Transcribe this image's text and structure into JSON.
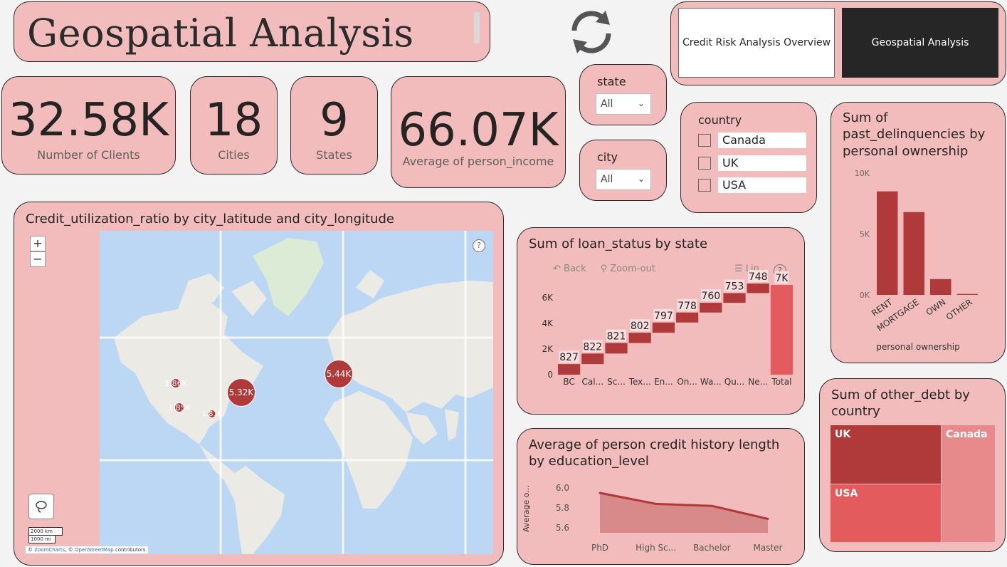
{
  "page": {
    "title": "Geospatial Analysis",
    "nav": {
      "overview": "Credit Risk Analysis Overview",
      "geospatial": "Geospatial Analysis"
    }
  },
  "kpis": {
    "clients": {
      "value": "32.58K",
      "label": "Number of Clients"
    },
    "cities": {
      "value": "18",
      "label": "Cities"
    },
    "states": {
      "value": "9",
      "label": "States"
    },
    "income": {
      "value": "66.07K",
      "label": "Average of person_income"
    }
  },
  "slicers": {
    "state": {
      "label": "state",
      "value": "All"
    },
    "city": {
      "label": "city",
      "value": "All"
    },
    "country": {
      "label": "country",
      "options": [
        "Canada",
        "UK",
        "USA"
      ]
    }
  },
  "map": {
    "title": "Credit_utilization_ratio by city_latitude and city_longitude",
    "zoom_in": "+",
    "zoom_out": "−",
    "help": "?",
    "scale_km": "2000 km",
    "scale_mi": "1000 mi",
    "credit_prefix": "©",
    "credit_zoomcharts": "ZoomCharts",
    "credit_mid": ", ©",
    "credit_osm": "OpenStreetMap",
    "credit_suffix": "contributors",
    "bubbles": [
      {
        "label": "5.44K"
      },
      {
        "label": "5.32K"
      },
      {
        "label": "1.86K"
      },
      {
        "label": "1.85K"
      },
      {
        "label": "1.81K"
      }
    ],
    "colors": {
      "ocean": "#bcd7f4",
      "land": "#eceae5",
      "ice": "#dcebd5",
      "bubble": "#b0393a"
    }
  },
  "waterfall": {
    "title": "Sum of loan_status by state",
    "toolbar": {
      "back": "Back",
      "zoom_out": "Zoom-out",
      "lin": "Lin",
      "help": "?"
    }
  },
  "ownership": {
    "title": "Sum of past_delinquencies by personal ownership",
    "xlabel": "personal ownership"
  },
  "debt": {
    "title": "Sum of other_debt by country",
    "cells": {
      "uk": "UK",
      "canada": "Canada",
      "usa": "USA"
    }
  },
  "history": {
    "title": "Average of person credit history length by education_level",
    "ylabel": "Average o..."
  },
  "chart_data": [
    {
      "type": "bar",
      "subtype": "waterfall",
      "title": "Sum of loan_status by state",
      "categories": [
        "BC",
        "Cal...",
        "Sc...",
        "Tex...",
        "En...",
        "On...",
        "Wa...",
        "Qu...",
        "Ne...",
        "Total"
      ],
      "values": [
        827,
        822,
        821,
        802,
        797,
        778,
        760,
        753,
        748,
        7000
      ],
      "data_labels": [
        "827",
        "822",
        "821",
        "802",
        "797",
        "778",
        "760",
        "753",
        "748",
        "7K"
      ],
      "y_ticks": [
        "0",
        "2K",
        "4K",
        "6K"
      ],
      "ylim": [
        0,
        7000
      ]
    },
    {
      "type": "bar",
      "title": "Sum of past_delinquencies by personal ownership",
      "categories": [
        "RENT",
        "MORTGAGE",
        "OWN",
        "OTHER"
      ],
      "values": [
        8500,
        6800,
        1300,
        80
      ],
      "xlabel": "personal ownership",
      "y_ticks": [
        "0K",
        "5K",
        "10K"
      ],
      "ylim": [
        0,
        10000
      ]
    },
    {
      "type": "area",
      "title": "Average of person credit history length by education_level",
      "categories": [
        "PhD",
        "High Sc...",
        "Bachelor",
        "Master"
      ],
      "values": [
        5.95,
        5.84,
        5.82,
        5.69
      ],
      "ylabel": "Average o...",
      "y_ticks": [
        "5.6",
        "5.8",
        "6.0"
      ],
      "ylim": [
        5.55,
        6.05
      ]
    },
    {
      "type": "treemap",
      "title": "Sum of other_debt by country",
      "categories": [
        "UK",
        "Canada",
        "USA"
      ],
      "colors": [
        "#b0393a",
        "#e88a8b",
        "#e35b5c"
      ]
    }
  ]
}
